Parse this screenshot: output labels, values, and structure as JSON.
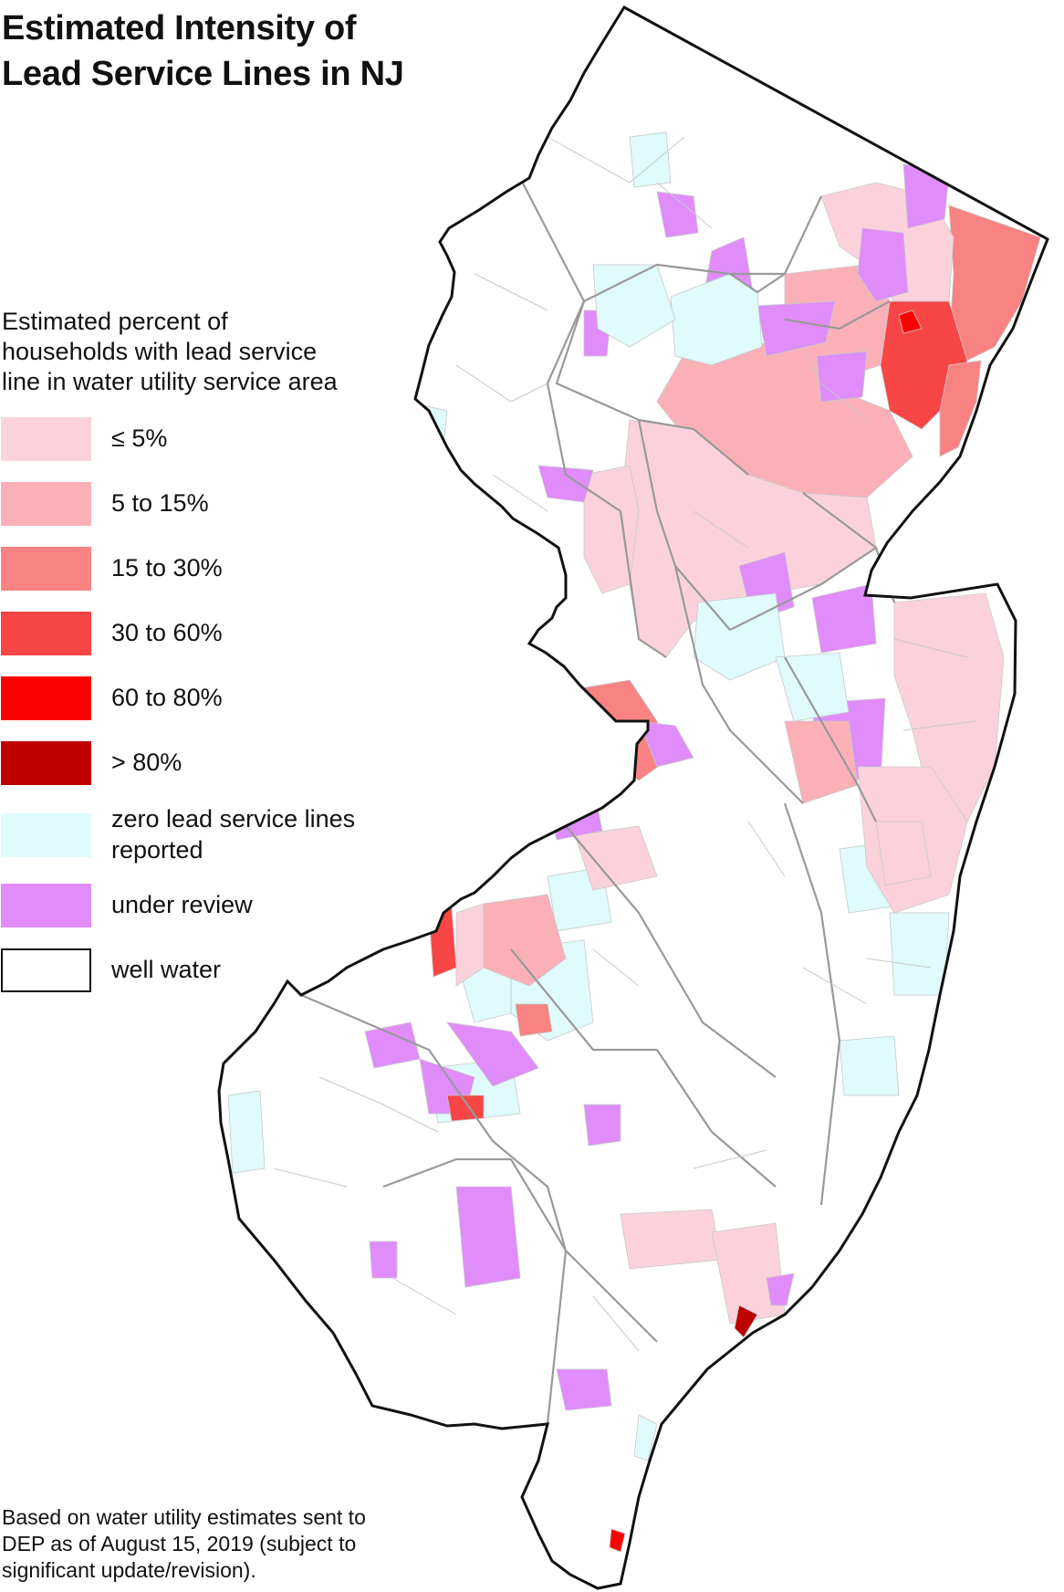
{
  "title": {
    "line1": "Estimated Intensity of",
    "line2": "Lead Service Lines in NJ"
  },
  "legend": {
    "heading_lines": [
      "Estimated percent of",
      "households with lead service",
      "line in water utility service area"
    ],
    "items": [
      {
        "label": "≤ 5%",
        "color": "#fbd2db"
      },
      {
        "label": "5 to 15%",
        "color": "#fbb0b8"
      },
      {
        "label": "15 to 30%",
        "color": "#f98282"
      },
      {
        "label": "30 to 60%",
        "color": "#f84545"
      },
      {
        "label": "60 to 80%",
        "color": "#fd0000"
      },
      {
        "label": "> 80%",
        "color": "#be0000"
      },
      {
        "label_lines": [
          "zero lead service lines",
          "reported"
        ],
        "color": "#dffbfc"
      },
      {
        "label": "under review",
        "color": "#e08cfb"
      },
      {
        "label": "well water",
        "color": "#ffffff"
      }
    ]
  },
  "map": {
    "boundary_color": "#111111",
    "county_line_color": "#999999",
    "municipal_line_color": "#c8c8c8"
  },
  "footnote": {
    "lines": [
      "Based on water utility estimates sent to",
      "DEP as of August 15, 2019 (subject to",
      "significant update/revision)."
    ]
  }
}
